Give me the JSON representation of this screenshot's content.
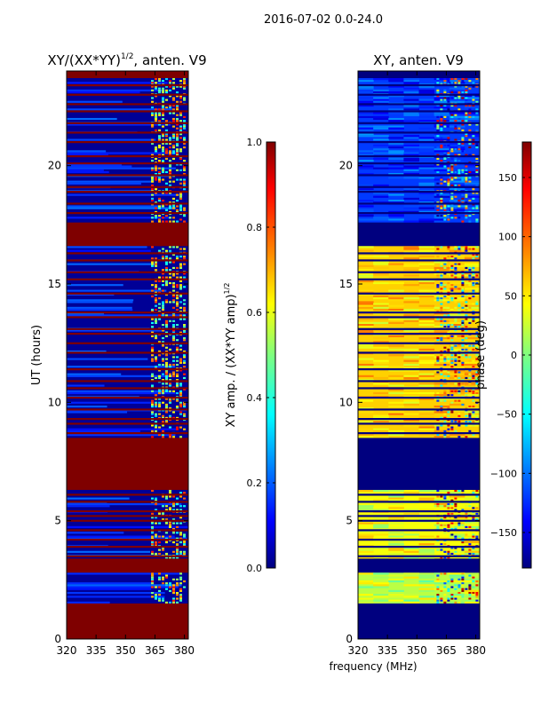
{
  "figure": {
    "suptitle": "2016-07-02 0.0-24.0",
    "shared_xlabel": "frequency (MHz)"
  },
  "colors": {
    "jet": [
      "#00007f",
      "#0000ff",
      "#007fff",
      "#00ffff",
      "#7fff7f",
      "#ffff00",
      "#ff7f00",
      "#ff0000",
      "#7f0000"
    ]
  },
  "chart_data": [
    {
      "type": "heatmap",
      "title_main": "XY/(XX*YY)",
      "title_sup": "1/2",
      "title_tail": ", anten. V9",
      "xlabel": "",
      "ylabel": "UT (hours)",
      "xlim": [
        320,
        382
      ],
      "ylim": [
        0,
        24
      ],
      "xticks": [
        320,
        335,
        350,
        365,
        380
      ],
      "yticks": [
        0,
        5,
        10,
        15,
        20
      ],
      "background_value": 1.0,
      "colorbar": {
        "label_main": "XY amp. / (XX*YY amp)",
        "label_sup": "1/2",
        "range": [
          0.0,
          1.0
        ],
        "ticks": [
          "0.0",
          "0.2",
          "0.4",
          "0.6",
          "0.8",
          "1.0"
        ]
      },
      "data_bands_hours": [
        [
          1.5,
          2.8
        ],
        [
          3.4,
          6.3
        ],
        [
          8.5,
          16.6
        ],
        [
          17.6,
          23.7
        ]
      ],
      "band_typical_value": 0.02,
      "flagged_rows_hours": [
        3.3,
        3.5,
        3.9,
        4.2,
        4.6,
        5.0,
        5.2,
        5.4,
        5.8,
        6.1,
        8.7,
        9.1,
        9.3,
        9.7,
        10.2,
        10.6,
        10.9,
        11.4,
        12.1,
        12.5,
        12.9,
        13.1,
        13.6,
        13.8,
        14.6,
        15.2,
        15.5,
        16.0,
        16.3,
        18.0,
        18.4,
        18.9,
        19.1,
        19.6,
        20.1,
        20.4,
        21.0,
        21.4,
        21.8,
        22.3,
        22.6,
        23.0,
        23.4
      ],
      "rfi_freq_range_mhz": [
        363,
        381
      ],
      "rfi_value_range": [
        0.3,
        0.9
      ]
    },
    {
      "type": "heatmap",
      "title_main": "XY, anten. V9",
      "xlabel": "",
      "ylabel": "",
      "xlim": [
        320,
        382
      ],
      "ylim": [
        0,
        24
      ],
      "xticks": [
        320,
        335,
        350,
        365,
        380
      ],
      "yticks": [
        0,
        5,
        10,
        15,
        20
      ],
      "background_value": -180,
      "colorbar": {
        "label_main": "phase (deg)",
        "range": [
          -180,
          180
        ],
        "ticks": [
          "−150",
          "−100",
          "−50",
          "0",
          "50",
          "100",
          "150"
        ]
      },
      "data_bands_hours": [
        [
          1.5,
          2.8
        ],
        [
          3.4,
          6.3
        ],
        [
          8.5,
          16.6
        ],
        [
          17.6,
          23.7
        ]
      ],
      "flagged_rows_hours": [
        3.3,
        3.5,
        3.9,
        4.2,
        4.6,
        5.0,
        5.2,
        5.4,
        5.8,
        6.1,
        8.7,
        9.1,
        9.3,
        9.7,
        10.2,
        10.6,
        10.9,
        11.4,
        12.1,
        12.5,
        12.9,
        13.1,
        13.6,
        13.8,
        14.6,
        15.2,
        15.5,
        16.0,
        16.3,
        18.0,
        18.4,
        18.9,
        19.1,
        19.6,
        20.1,
        20.4,
        21.0,
        21.4,
        21.8,
        22.3,
        22.6,
        23.0,
        23.4
      ],
      "phase_by_band_deg": [
        20,
        40,
        60,
        -120
      ],
      "rfi_freq_range_mhz": [
        360,
        381
      ]
    }
  ]
}
